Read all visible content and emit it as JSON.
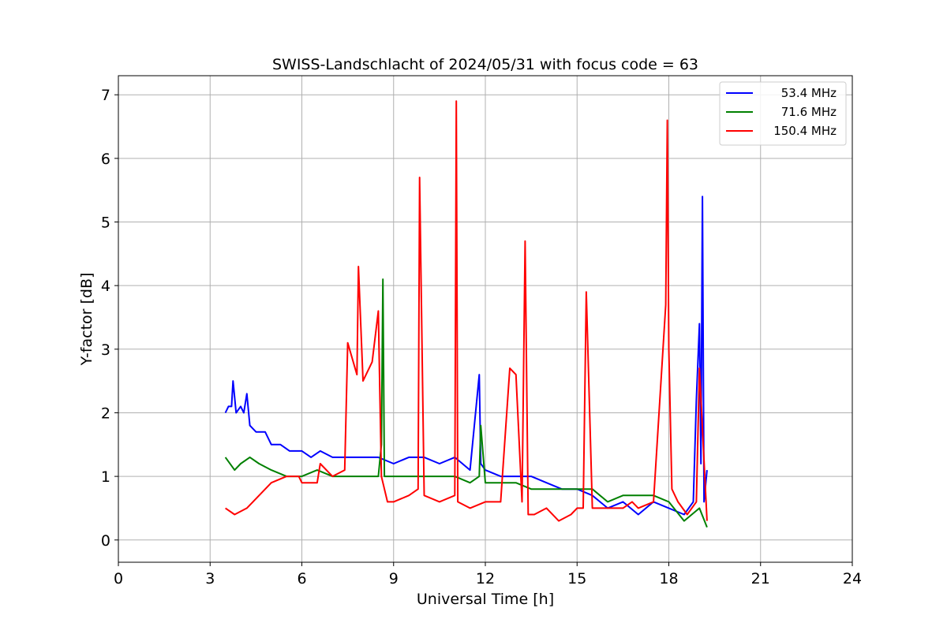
{
  "chart_data": {
    "type": "line",
    "title": "SWISS-Landschlacht of 2024/05/31 with focus code = 63",
    "xlabel": "Universal Time [h]",
    "ylabel": "Y-factor [dB]",
    "xlim": [
      0,
      24
    ],
    "ylim": [
      -0.35,
      7.3
    ],
    "xticks": [
      0,
      3,
      6,
      9,
      12,
      15,
      18,
      21,
      24
    ],
    "yticks": [
      0,
      1,
      2,
      3,
      4,
      5,
      6,
      7
    ],
    "xtick_labels": [
      "0",
      "3",
      "6",
      "9",
      "12",
      "15",
      "18",
      "21",
      "24"
    ],
    "ytick_labels": [
      "0",
      "1",
      "2",
      "3",
      "4",
      "5",
      "6",
      "7"
    ],
    "grid": true,
    "legend_position": "upper right",
    "series": [
      {
        "name": "53.4 MHz",
        "color": "#0000ff",
        "x": [
          3.5,
          3.6,
          3.7,
          3.75,
          3.85,
          4.0,
          4.1,
          4.2,
          4.3,
          4.5,
          4.8,
          5.0,
          5.3,
          5.6,
          6.0,
          6.3,
          6.6,
          7.0,
          7.5,
          8.0,
          8.5,
          9.0,
          9.5,
          10.0,
          10.5,
          11.0,
          11.5,
          11.8,
          11.85,
          12.0,
          12.5,
          13.0,
          13.5,
          14.0,
          14.5,
          15.0,
          15.5,
          16.0,
          16.5,
          17.0,
          17.5,
          18.0,
          18.5,
          18.8,
          18.9,
          19.0,
          19.05,
          19.1,
          19.15,
          19.25
        ],
        "y": [
          2.0,
          2.1,
          2.1,
          2.5,
          2.0,
          2.1,
          2.0,
          2.3,
          1.8,
          1.7,
          1.7,
          1.5,
          1.5,
          1.4,
          1.4,
          1.3,
          1.4,
          1.3,
          1.3,
          1.3,
          1.3,
          1.2,
          1.3,
          1.3,
          1.2,
          1.3,
          1.1,
          2.6,
          1.2,
          1.1,
          1.0,
          1.0,
          1.0,
          0.9,
          0.8,
          0.8,
          0.7,
          0.5,
          0.6,
          0.4,
          0.6,
          0.5,
          0.4,
          0.6,
          2.2,
          3.4,
          1.2,
          5.4,
          0.6,
          1.1
        ]
      },
      {
        "name": "71.6 MHz",
        "color": "#008000",
        "x": [
          3.5,
          3.8,
          4.0,
          4.3,
          4.6,
          5.0,
          5.5,
          6.0,
          6.5,
          7.0,
          7.5,
          8.0,
          8.5,
          8.6,
          8.65,
          8.7,
          9.0,
          9.5,
          10.0,
          10.5,
          11.0,
          11.5,
          11.8,
          11.85,
          12.0,
          12.5,
          13.0,
          13.5,
          14.0,
          14.5,
          15.0,
          15.5,
          16.0,
          16.5,
          17.0,
          17.5,
          18.0,
          18.5,
          19.0,
          19.25
        ],
        "y": [
          1.3,
          1.1,
          1.2,
          1.3,
          1.2,
          1.1,
          1.0,
          1.0,
          1.1,
          1.0,
          1.0,
          1.0,
          1.0,
          1.5,
          4.1,
          1.0,
          1.0,
          1.0,
          1.0,
          1.0,
          1.0,
          0.9,
          1.0,
          1.8,
          0.9,
          0.9,
          0.9,
          0.8,
          0.8,
          0.8,
          0.8,
          0.8,
          0.6,
          0.7,
          0.7,
          0.7,
          0.6,
          0.3,
          0.5,
          0.2
        ]
      },
      {
        "name": "150.4 MHz",
        "color": "#ff0000",
        "x": [
          3.5,
          3.8,
          4.2,
          4.4,
          4.6,
          5.0,
          5.5,
          5.9,
          6.0,
          6.5,
          6.6,
          7.0,
          7.4,
          7.5,
          7.8,
          7.85,
          8.0,
          8.3,
          8.5,
          8.6,
          8.8,
          9.0,
          9.5,
          9.8,
          9.85,
          10.0,
          10.5,
          11.0,
          11.05,
          11.1,
          11.5,
          12.0,
          12.5,
          12.8,
          13.0,
          13.2,
          13.3,
          13.4,
          13.6,
          14.0,
          14.4,
          14.8,
          15.0,
          15.2,
          15.3,
          15.5,
          16.0,
          16.5,
          16.8,
          17.0,
          17.5,
          17.9,
          17.95,
          18.0,
          18.1,
          18.3,
          18.6,
          18.9,
          19.0,
          19.25
        ],
        "y": [
          0.5,
          0.4,
          0.5,
          0.6,
          0.7,
          0.9,
          1.0,
          1.0,
          0.9,
          0.9,
          1.2,
          1.0,
          1.1,
          3.1,
          2.6,
          4.3,
          2.5,
          2.8,
          3.6,
          1.0,
          0.6,
          0.6,
          0.7,
          0.8,
          5.7,
          0.7,
          0.6,
          0.7,
          6.9,
          0.6,
          0.5,
          0.6,
          0.6,
          2.7,
          2.6,
          0.6,
          4.7,
          0.4,
          0.4,
          0.5,
          0.3,
          0.4,
          0.5,
          0.5,
          3.9,
          0.5,
          0.5,
          0.5,
          0.6,
          0.5,
          0.6,
          3.7,
          6.6,
          3.0,
          0.8,
          0.6,
          0.4,
          0.6,
          2.7,
          0.3
        ]
      }
    ]
  }
}
